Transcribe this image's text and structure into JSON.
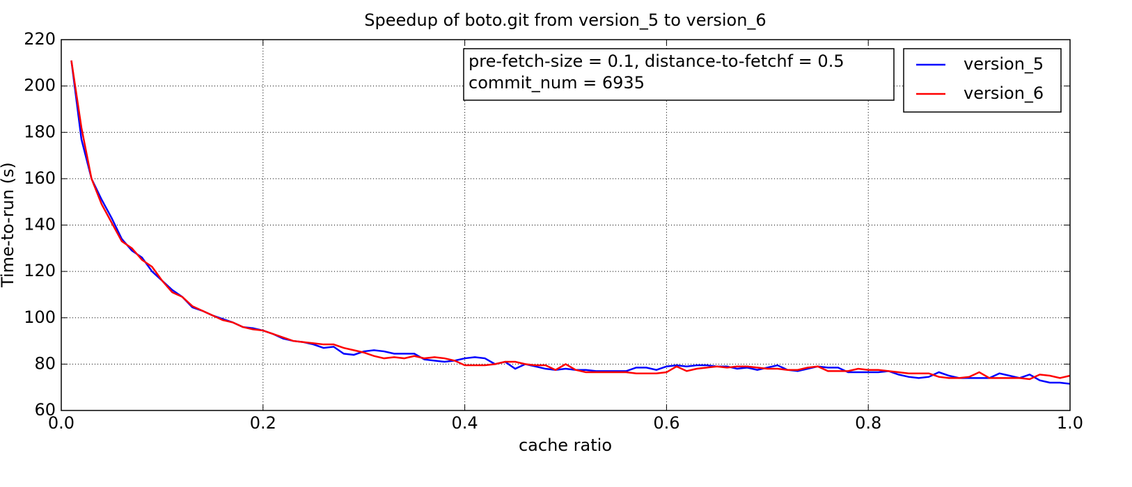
{
  "chart_data": {
    "type": "line",
    "title": "Speedup of boto.git from version_5 to version_6",
    "x_label": "cache ratio",
    "y_label": "Time-to-run (s)",
    "annotation": [
      "pre-fetch-size = 0.1, distance-to-fetchf = 0.5",
      "commit_num = 6935"
    ],
    "x": [
      0.01,
      0.02,
      0.03,
      0.04,
      0.05,
      0.06,
      0.07,
      0.08,
      0.09,
      0.1,
      0.11,
      0.12,
      0.13,
      0.14,
      0.15,
      0.16,
      0.17,
      0.18,
      0.19,
      0.2,
      0.21,
      0.22,
      0.23,
      0.24,
      0.25,
      0.26,
      0.27,
      0.28,
      0.29,
      0.3,
      0.31,
      0.32,
      0.33,
      0.34,
      0.35,
      0.36,
      0.37,
      0.38,
      0.39,
      0.4,
      0.41,
      0.42,
      0.43,
      0.44,
      0.45,
      0.46,
      0.47,
      0.48,
      0.49,
      0.5,
      0.51,
      0.52,
      0.53,
      0.54,
      0.55,
      0.56,
      0.57,
      0.58,
      0.59,
      0.6,
      0.61,
      0.62,
      0.63,
      0.64,
      0.65,
      0.66,
      0.67,
      0.68,
      0.69,
      0.7,
      0.71,
      0.72,
      0.73,
      0.74,
      0.75,
      0.76,
      0.77,
      0.78,
      0.79,
      0.8,
      0.81,
      0.82,
      0.83,
      0.84,
      0.85,
      0.86,
      0.87,
      0.88,
      0.89,
      0.9,
      0.91,
      0.92,
      0.93,
      0.94,
      0.95,
      0.96,
      0.97,
      0.98,
      0.99,
      1.0
    ],
    "series": [
      {
        "name": "version_5",
        "color": "#0000ff",
        "values": [
          211,
          177,
          160,
          151,
          143,
          134,
          129,
          126,
          120,
          116,
          112,
          109,
          104.5,
          103,
          101,
          99.5,
          98,
          96,
          95.5,
          94.5,
          93,
          91,
          90,
          89.5,
          88.5,
          87,
          87.5,
          84.5,
          84,
          85.5,
          86,
          85.5,
          84.5,
          84.5,
          84.5,
          82,
          81.5,
          81,
          81.5,
          82.5,
          83,
          82.5,
          80,
          81,
          78,
          80,
          79,
          78,
          77.5,
          78,
          77.5,
          77.5,
          77,
          77,
          77,
          77,
          78.5,
          78.5,
          77.5,
          79,
          79.5,
          79,
          79.5,
          79.5,
          79,
          79,
          78,
          78.5,
          77.5,
          78.5,
          79.5,
          77.5,
          77,
          78,
          79,
          78.5,
          78.5,
          76.5,
          76.5,
          76.5,
          76.5,
          77,
          75.5,
          74.5,
          74,
          74.5,
          76.5,
          75,
          74,
          74,
          74,
          74,
          76,
          75,
          74,
          75.5,
          73,
          72,
          72,
          71.5
        ]
      },
      {
        "name": "version_6",
        "color": "#ff0000",
        "values": [
          211,
          182,
          160,
          149,
          141,
          133,
          130,
          125,
          122,
          116,
          111,
          109,
          105,
          103,
          101,
          99,
          98,
          96,
          95,
          94.5,
          93,
          91.5,
          90,
          89.5,
          89,
          88.5,
          88.5,
          87,
          86,
          85,
          83.5,
          82.5,
          83,
          82.5,
          83.5,
          82.5,
          83,
          82.5,
          81.5,
          79.5,
          79.5,
          79.5,
          80,
          81,
          81,
          80,
          79.5,
          79.5,
          77.5,
          80,
          77.5,
          76.5,
          76.5,
          76.5,
          76.5,
          76.5,
          76,
          76,
          76,
          76.5,
          79,
          77,
          78,
          78.5,
          79,
          78.5,
          79,
          79,
          78.5,
          78,
          78,
          77.5,
          77.5,
          78.5,
          79,
          77,
          77,
          77,
          78,
          77.5,
          77.5,
          77,
          76.5,
          76,
          76,
          76,
          74.5,
          74,
          74,
          74.5,
          76.5,
          74,
          74,
          74,
          74,
          73.5,
          75.5,
          75,
          74,
          75
        ]
      }
    ],
    "xlim": [
      0,
      1
    ],
    "ylim": [
      60,
      220
    ],
    "xticks": [
      {
        "value": 0,
        "label": "0.0"
      },
      {
        "value": 0.2,
        "label": "0.2"
      },
      {
        "value": 0.4,
        "label": "0.4"
      },
      {
        "value": 0.6,
        "label": "0.6"
      },
      {
        "value": 0.8,
        "label": "0.8"
      },
      {
        "value": 1,
        "label": "1.0"
      }
    ],
    "yticks": [
      60,
      80,
      100,
      120,
      140,
      160,
      180,
      200,
      220
    ],
    "grid": true,
    "legend": "upper right"
  }
}
